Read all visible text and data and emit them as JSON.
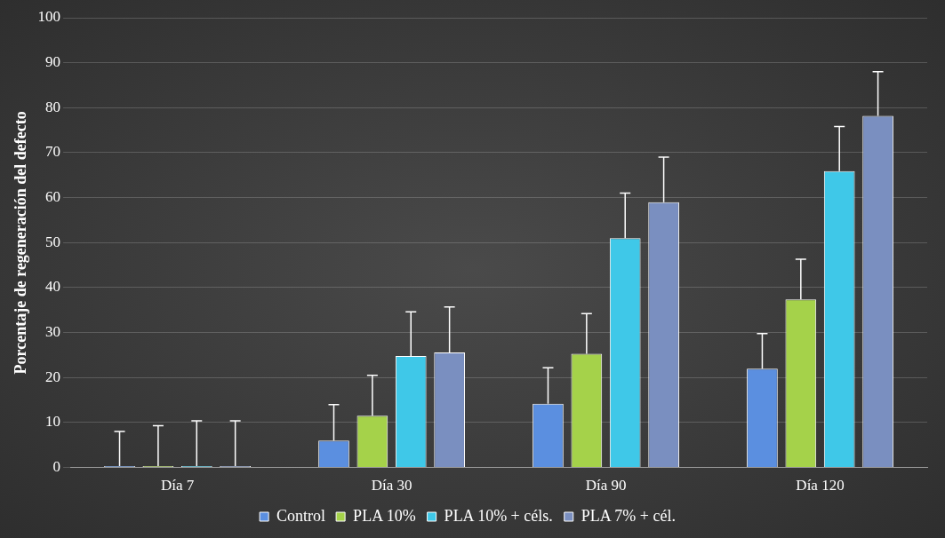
{
  "chart_data": {
    "type": "bar",
    "ylabel": "Porcentaje de regeneración del defecto",
    "categories": [
      "Día 7",
      "Día 30",
      "Día 90",
      "Día 120"
    ],
    "series": [
      {
        "name": "Control",
        "color": "#5b8fe0",
        "values": [
          0.3,
          6,
          14.2,
          22
        ],
        "errors": [
          [
            0.3,
            8
          ],
          [
            6,
            14
          ],
          [
            14.2,
            22.2
          ],
          [
            22,
            29.8
          ]
        ]
      },
      {
        "name": "PLA 10%",
        "color": "#a5d24a",
        "values": [
          0.3,
          11.5,
          25.3,
          37.4
        ],
        "errors": [
          [
            0.3,
            9.3
          ],
          [
            11.5,
            20.5
          ],
          [
            25.3,
            34.2
          ],
          [
            37.4,
            46.3
          ]
        ]
      },
      {
        "name": "PLA 10% + céls.",
        "color": "#3fc8e8",
        "values": [
          0.3,
          24.8,
          51,
          65.9
        ],
        "errors": [
          [
            0.3,
            10.4
          ],
          [
            24.8,
            34.6
          ],
          [
            51,
            61
          ],
          [
            65.9,
            75.8
          ]
        ]
      },
      {
        "name": "PLA 7% + cél.",
        "color": "#7a8fc0",
        "values": [
          0.3,
          25.6,
          59,
          78.2
        ],
        "errors": [
          [
            0.3,
            10.4
          ],
          [
            25.6,
            35.7
          ],
          [
            59,
            69
          ],
          [
            78.2,
            88
          ]
        ]
      }
    ],
    "ylim": [
      0,
      100
    ],
    "yticks": [
      0,
      10,
      20,
      30,
      40,
      50,
      60,
      70,
      80,
      90,
      100
    ],
    "grid": "y",
    "legend": "bottom"
  }
}
